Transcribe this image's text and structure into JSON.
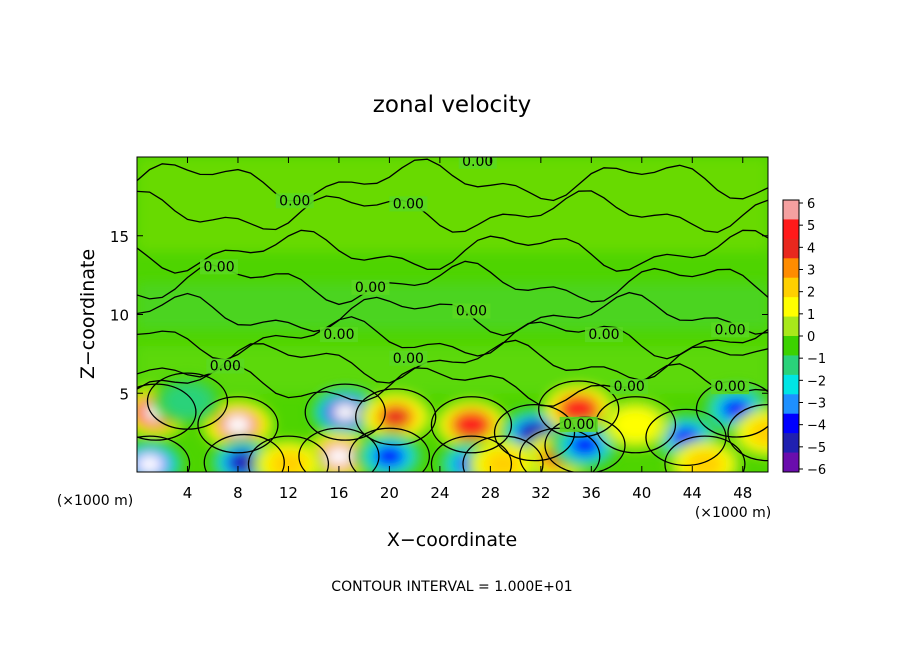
{
  "chart_data": {
    "type": "heatmap",
    "title": "zonal velocity",
    "xlabel": "X−coordinate",
    "ylabel": "Z−coordinate",
    "x_unit_left": "(×1000 m)",
    "x_unit_right": "(×1000 m)",
    "footer": "CONTOUR INTERVAL = 1.000E+01",
    "xlim": [
      0,
      50
    ],
    "ylim": [
      0,
      20
    ],
    "x_ticks": [
      4,
      8,
      12,
      16,
      20,
      24,
      28,
      32,
      36,
      40,
      44,
      48
    ],
    "y_ticks": [
      5,
      10,
      15
    ],
    "colorbar": {
      "ticks": [
        6,
        5,
        4,
        3,
        2,
        1,
        0,
        -1,
        -2,
        -3,
        -4,
        -5,
        -6
      ],
      "range": [
        -6,
        6
      ],
      "colors": [
        "#f4a0a0",
        "#ff1a1a",
        "#e8281e",
        "#ff8c00",
        "#ffd000",
        "#ffff00",
        "#a8e81a",
        "#3cd200",
        "#2ad27a",
        "#00e5e5",
        "#1e90ff",
        "#0000ff",
        "#2020b0",
        "#6a0dad"
      ]
    },
    "contour_labels": [
      {
        "text": "0.00",
        "x": 27,
        "z": 19.5
      },
      {
        "text": "0.00",
        "x": 21.5,
        "z": 16.8
      },
      {
        "text": "0.00",
        "x": 12.5,
        "z": 17.0
      },
      {
        "text": "0.00",
        "x": 6.5,
        "z": 12.8
      },
      {
        "text": "0.00",
        "x": 18.5,
        "z": 11.5
      },
      {
        "text": "0.00",
        "x": 26.5,
        "z": 10.0
      },
      {
        "text": "0.00",
        "x": 16.0,
        "z": 8.5
      },
      {
        "text": "0.00",
        "x": 21.5,
        "z": 7.0
      },
      {
        "text": "0.00",
        "x": 37.0,
        "z": 8.5
      },
      {
        "text": "0.00",
        "x": 47.0,
        "z": 8.8
      },
      {
        "text": "0.00",
        "x": 7.0,
        "z": 6.5
      },
      {
        "text": "0.00",
        "x": 39.0,
        "z": 5.2
      },
      {
        "text": "0.00",
        "x": 47.0,
        "z": 5.2
      },
      {
        "text": "0.00",
        "x": 35.0,
        "z": 2.8
      }
    ],
    "blobs": [
      {
        "x": 1.5,
        "z": 3.8,
        "v": 5.5
      },
      {
        "x": 1.0,
        "z": 0.5,
        "v": -5.0
      },
      {
        "x": 8.0,
        "z": 3.0,
        "v": 5.0
      },
      {
        "x": 8.5,
        "z": 0.6,
        "v": -4.5
      },
      {
        "x": 16.5,
        "z": 3.8,
        "v": -5.5
      },
      {
        "x": 16.0,
        "z": 1.0,
        "v": 5.0
      },
      {
        "x": 20.5,
        "z": 3.5,
        "v": 4.0
      },
      {
        "x": 20.0,
        "z": 1.0,
        "v": -3.5
      },
      {
        "x": 26.5,
        "z": 3.0,
        "v": 4.5
      },
      {
        "x": 26.5,
        "z": 0.5,
        "v": -4.0
      },
      {
        "x": 31.5,
        "z": 2.5,
        "v": -4.5
      },
      {
        "x": 33.5,
        "z": 1.0,
        "v": 3.5
      },
      {
        "x": 35.0,
        "z": 4.0,
        "v": 4.5
      },
      {
        "x": 35.5,
        "z": 1.7,
        "v": -4.0
      },
      {
        "x": 43.5,
        "z": 2.2,
        "v": -3.5
      },
      {
        "x": 45.0,
        "z": 0.5,
        "v": 3.0
      },
      {
        "x": 47.5,
        "z": 4.0,
        "v": -3.5
      },
      {
        "x": 50.0,
        "z": 2.5,
        "v": 3.0
      },
      {
        "x": 12.0,
        "z": 0.5,
        "v": 2.5
      },
      {
        "x": 4.0,
        "z": 4.5,
        "v": -2.0
      },
      {
        "x": 39.5,
        "z": 3.0,
        "v": 2.0
      },
      {
        "x": 29.0,
        "z": 0.5,
        "v": 3.0
      }
    ]
  }
}
